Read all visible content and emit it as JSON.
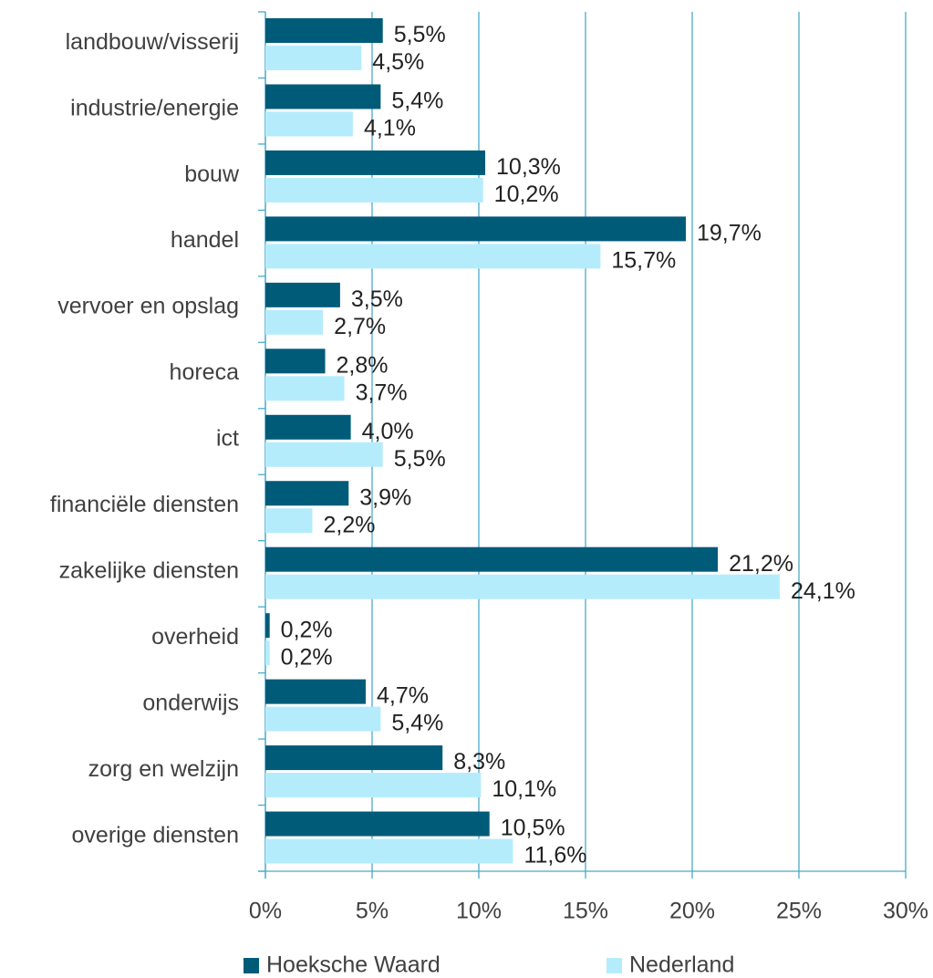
{
  "chart_data": {
    "type": "hbar",
    "categories": [
      "landbouw/visserij",
      "industrie/energie",
      "bouw",
      "handel",
      "vervoer en opslag",
      "horeca",
      "ict",
      "financiële diensten",
      "zakelijke diensten",
      "overheid",
      "onderwijs",
      "zorg en welzijn",
      "overige diensten"
    ],
    "series": [
      {
        "name": "Hoeksche Waard",
        "color": "#005b79",
        "values": [
          5.5,
          5.4,
          10.3,
          19.7,
          3.5,
          2.8,
          4.0,
          3.9,
          21.2,
          0.2,
          4.7,
          8.3,
          10.5
        ],
        "value_labels": [
          "5,5%",
          "5,4%",
          "10,3%",
          "19,7%",
          "3,5%",
          "2,8%",
          "4,0%",
          "3,9%",
          "21,2%",
          "0,2%",
          "4,7%",
          "8,3%",
          "10,5%"
        ]
      },
      {
        "name": "Nederland",
        "color": "#b5ecfb",
        "values": [
          4.5,
          4.1,
          10.2,
          15.7,
          2.7,
          3.7,
          5.5,
          2.2,
          24.1,
          0.2,
          5.4,
          10.1,
          11.6
        ],
        "value_labels": [
          "4,5%",
          "4,1%",
          "10,2%",
          "15,7%",
          "2,7%",
          "3,7%",
          "5,5%",
          "2,2%",
          "24,1%",
          "0,2%",
          "5,4%",
          "10,1%",
          "11,6%"
        ]
      }
    ],
    "xlim": [
      0,
      30
    ],
    "xticks": [
      {
        "value": 0,
        "label": "0%"
      },
      {
        "value": 5,
        "label": "5%"
      },
      {
        "value": 10,
        "label": "10%"
      },
      {
        "value": 15,
        "label": "15%"
      },
      {
        "value": 20,
        "label": "20%"
      },
      {
        "value": 25,
        "label": "25%"
      },
      {
        "value": 30,
        "label": "30%"
      }
    ],
    "grid": true,
    "legend": "bottom"
  }
}
